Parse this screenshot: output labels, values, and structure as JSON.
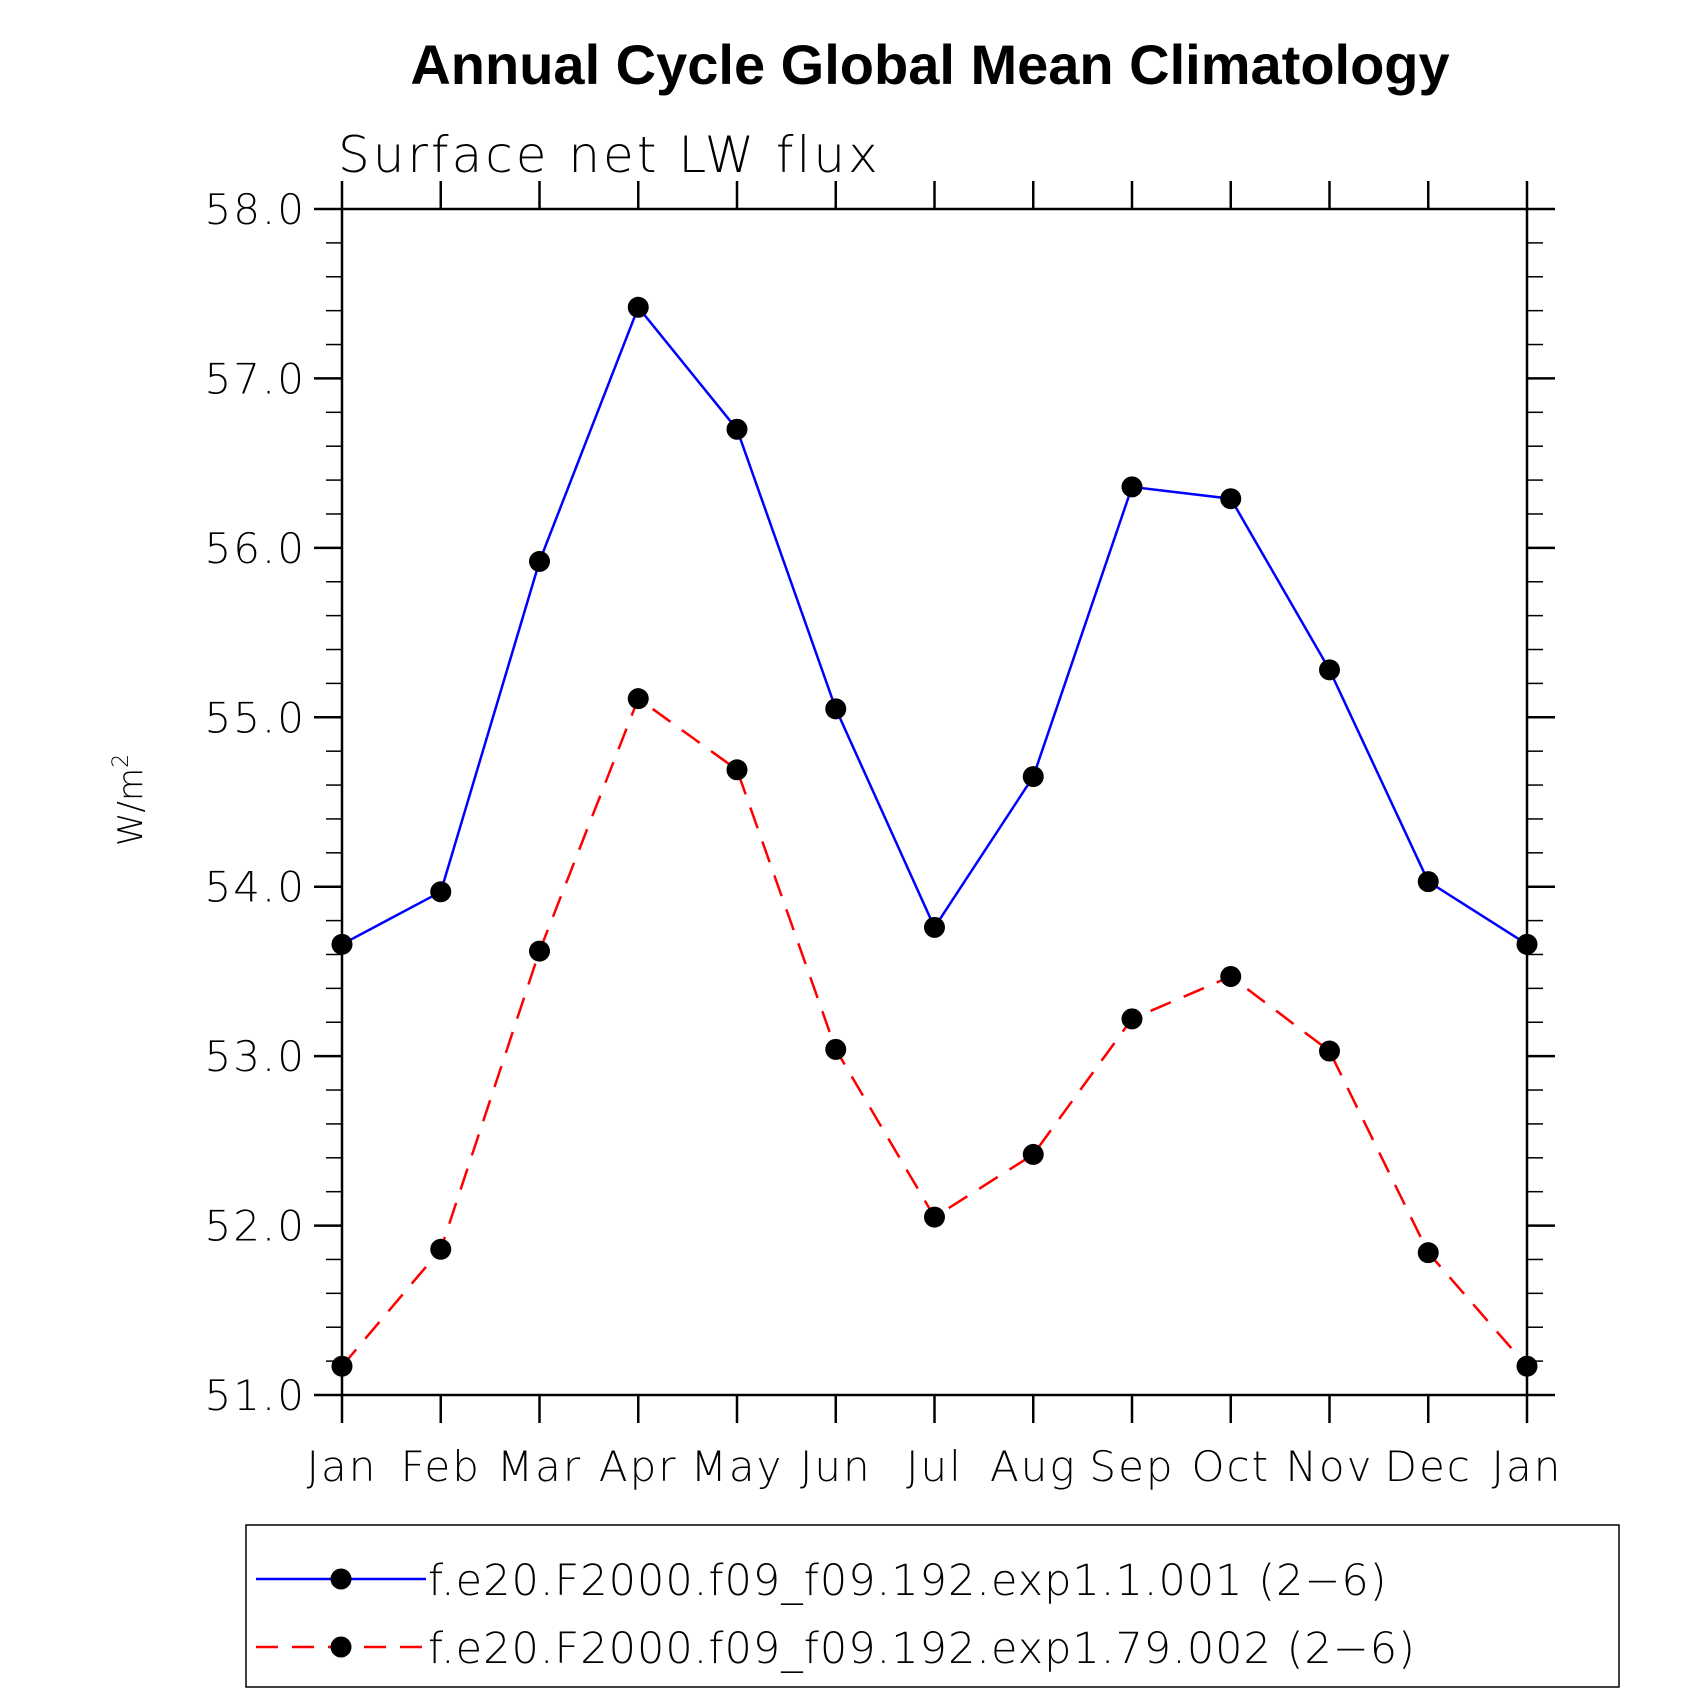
{
  "chart_data": {
    "type": "line",
    "title": "Annual Cycle Global Mean Climatology",
    "subtitle": "Surface net LW flux",
    "ylabel": "W/m",
    "ylabel_superscript": "2",
    "ylim": [
      51.0,
      58.0
    ],
    "yticks": [
      "51.0",
      "52.0",
      "53.0",
      "54.0",
      "55.0",
      "56.0",
      "57.0",
      "58.0"
    ],
    "categories": [
      "Jan",
      "Feb",
      "Mar",
      "Apr",
      "May",
      "Jun",
      "Jul",
      "Aug",
      "Sep",
      "Oct",
      "Nov",
      "Dec",
      "Jan"
    ],
    "grid": false,
    "legend_position": "bottom",
    "series": [
      {
        "name": "f.e20.F2000.f09_f09.192.exp1.1.001 (2−6)",
        "color": "#0000ff",
        "dash": "solid",
        "marker": "filled-circle",
        "values": [
          53.66,
          53.97,
          55.92,
          57.42,
          56.7,
          55.05,
          53.76,
          54.65,
          56.36,
          56.29,
          55.28,
          54.03,
          53.66
        ]
      },
      {
        "name": "f.e20.F2000.f09_f09.192.exp1.79.002 (2−6)",
        "color": "#ff0000",
        "dash": "dashed",
        "marker": "filled-circle",
        "values": [
          51.17,
          51.86,
          53.62,
          55.11,
          54.69,
          53.04,
          52.05,
          52.42,
          53.22,
          53.47,
          53.03,
          51.84,
          51.17
        ]
      }
    ]
  }
}
